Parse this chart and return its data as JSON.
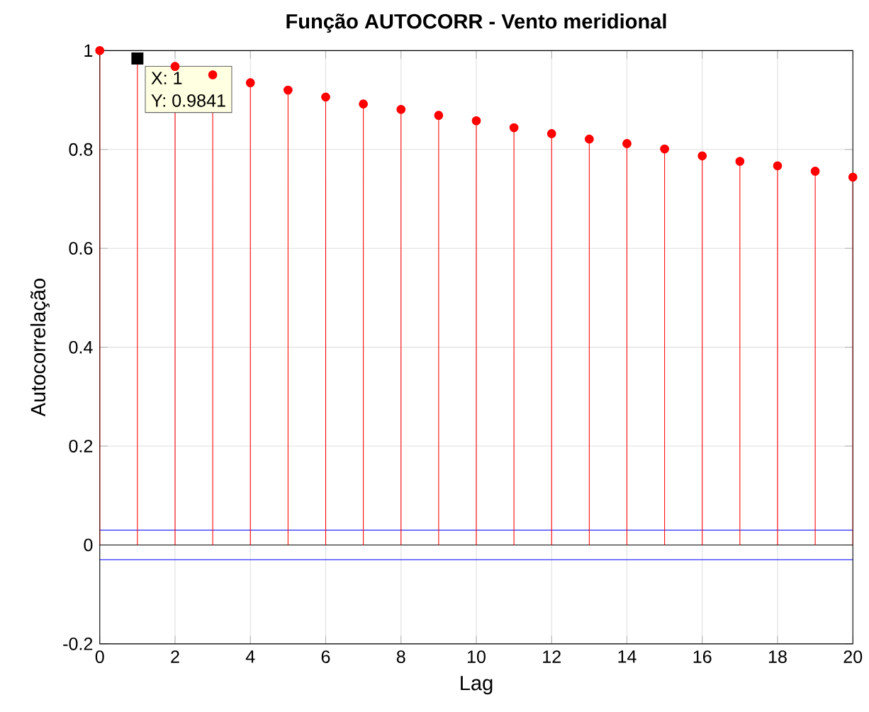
{
  "chart_data": {
    "type": "lollipop",
    "title": "Função AUTOCORR - Vento meridional",
    "xlabel": "Lag",
    "ylabel": "Autocorrelação",
    "x": [
      0,
      1,
      2,
      3,
      4,
      5,
      6,
      7,
      8,
      9,
      10,
      11,
      12,
      13,
      14,
      15,
      16,
      17,
      18,
      19,
      20
    ],
    "series": [
      {
        "color": "#ff0000",
        "values": [
          1,
          0.9841,
          0.968,
          0.951,
          0.935,
          0.92,
          0.906,
          0.892,
          0.881,
          0.869,
          0.858,
          0.844,
          0.832,
          0.821,
          0.812,
          0.801,
          0.787,
          0.776,
          0.767,
          0.756,
          0.744
        ]
      }
    ],
    "xlim": [
      0,
      20
    ],
    "ylim": [
      -0.2,
      1
    ],
    "xticks": [
      0,
      2,
      4,
      6,
      8,
      10,
      12,
      14,
      16,
      18,
      20
    ],
    "yticks": [
      -0.2,
      0,
      0.2,
      0.4,
      0.6,
      0.8,
      1
    ],
    "ref_lines": [
      {
        "axis": "y",
        "value": 0.03,
        "color": "#0000ff"
      },
      {
        "axis": "y",
        "value": -0.03,
        "color": "#0000ff"
      },
      {
        "axis": "y",
        "value": 0,
        "color": "#000000"
      }
    ],
    "annotations": [
      {
        "text": "X: 1",
        "x": 1,
        "y": 0.9841
      },
      "Y: 0.9841"
    ],
    "grid": true,
    "marker": "circle"
  }
}
